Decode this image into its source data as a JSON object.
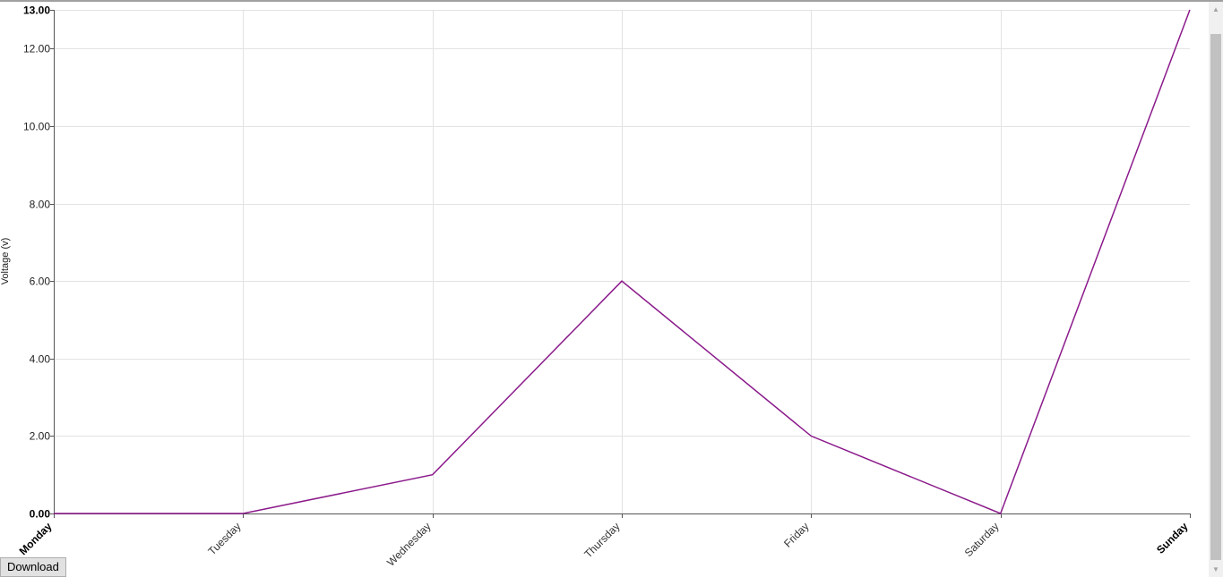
{
  "chart_data": {
    "type": "line",
    "categories": [
      "Monday",
      "Tuesday",
      "Wednesday",
      "Thursday",
      "Friday",
      "Saturday",
      "Sunday"
    ],
    "series": [
      {
        "values": [
          0,
          0,
          1,
          6,
          2,
          0,
          13
        ]
      }
    ],
    "ylabel": "Voltage (v)",
    "xlabel": "",
    "title": "",
    "ylim": [
      0,
      13
    ],
    "yticks": [
      "0.00",
      "2.00",
      "4.00",
      "6.00",
      "8.00",
      "10.00",
      "12.00",
      "13.00"
    ],
    "grid": true,
    "line_color": "#8b1a8b"
  },
  "controls": {
    "download_label": "Download"
  }
}
